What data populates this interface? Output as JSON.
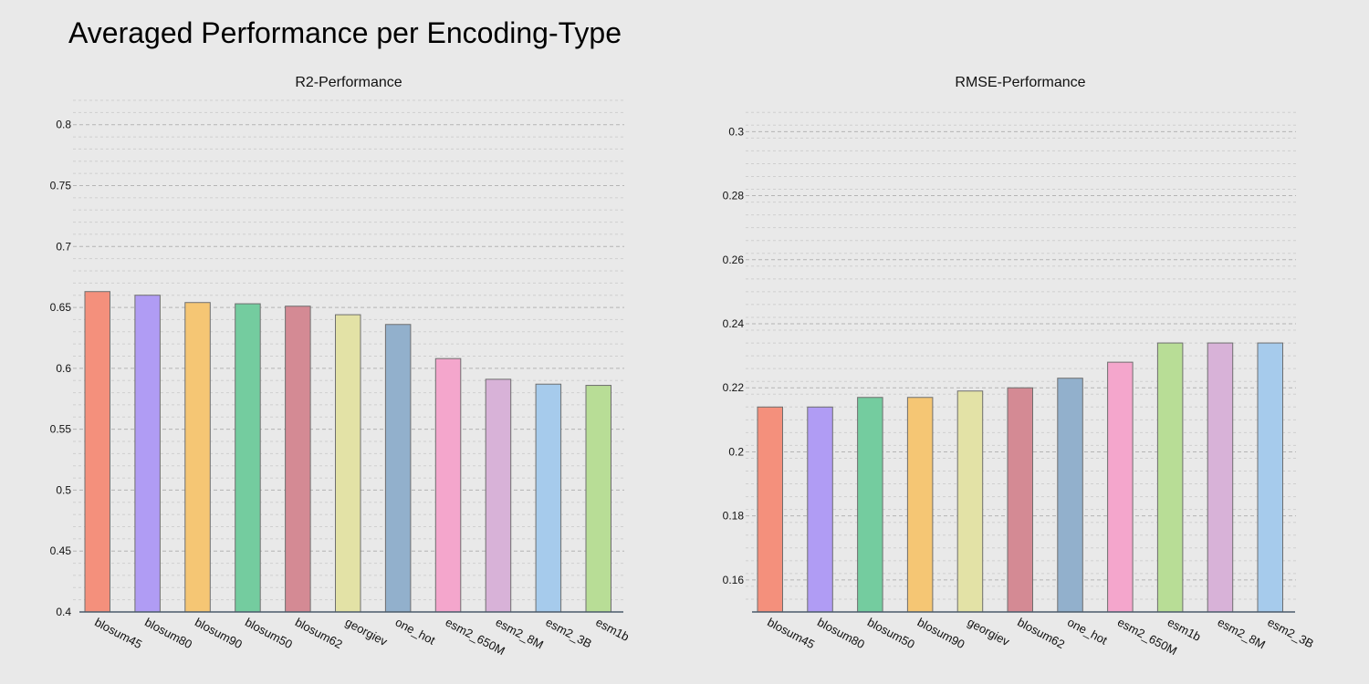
{
  "figure": {
    "title": "Averaged Performance per Encoding-Type",
    "background": "#e9e9e9"
  },
  "chart_data": [
    {
      "type": "bar",
      "title": "R2-Performance",
      "xlabel": "",
      "ylabel": "",
      "categories": [
        "blosum45",
        "blosum80",
        "blosum90",
        "blosum50",
        "blosum62",
        "georgiev",
        "one_hot",
        "esm2_650M",
        "esm2_8M",
        "esm2_3B",
        "esm1b"
      ],
      "values": [
        0.663,
        0.66,
        0.654,
        0.653,
        0.651,
        0.644,
        0.636,
        0.608,
        0.591,
        0.587,
        0.586
      ],
      "colors": [
        "#f4907c",
        "#b09cf4",
        "#f5c674",
        "#74cc9f",
        "#d48a94",
        "#e3e2a6",
        "#92b0cc",
        "#f4a6cc",
        "#d8b2d8",
        "#a6cbec",
        "#b8dd96"
      ],
      "ylim": [
        0.4,
        0.82
      ],
      "yticks": [
        0.4,
        0.45,
        0.5,
        0.55,
        0.6,
        0.65,
        0.7,
        0.75,
        0.8
      ],
      "ytick_labels": [
        "0.4",
        "0.45",
        "0.5",
        "0.55",
        "0.6",
        "0.65",
        "0.7",
        "0.75",
        "0.8"
      ],
      "grid": true
    },
    {
      "type": "bar",
      "title": "RMSE-Performance",
      "xlabel": "",
      "ylabel": "",
      "categories": [
        "blosum45",
        "blosum80",
        "blosum50",
        "blosum90",
        "georgiev",
        "blosum62",
        "one_hot",
        "esm2_650M",
        "esm1b",
        "esm2_8M",
        "esm2_3B"
      ],
      "values": [
        0.214,
        0.214,
        0.217,
        0.217,
        0.219,
        0.22,
        0.223,
        0.228,
        0.234,
        0.234,
        0.234
      ],
      "colors": [
        "#f4907c",
        "#b09cf4",
        "#74cc9f",
        "#f5c674",
        "#e3e2a6",
        "#d48a94",
        "#92b0cc",
        "#f4a6cc",
        "#b8dd96",
        "#d8b2d8",
        "#a6cbec"
      ],
      "ylim": [
        0.15,
        0.3075
      ],
      "yticks": [
        0.16,
        0.18,
        0.2,
        0.22,
        0.24,
        0.26,
        0.28,
        0.3
      ],
      "ytick_labels": [
        "0.16",
        "0.18",
        "0.2",
        "0.22",
        "0.24",
        "0.26",
        "0.28",
        "0.3"
      ],
      "grid": true
    }
  ]
}
